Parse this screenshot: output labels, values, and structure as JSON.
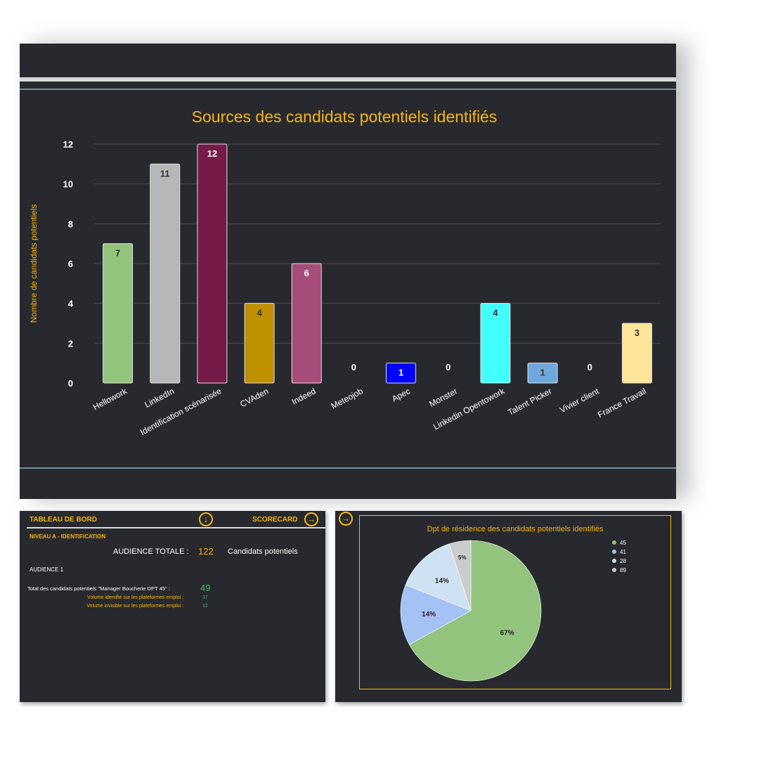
{
  "chart_data": [
    {
      "type": "bar",
      "title": "Sources des candidats potentiels identifiés",
      "ylabel": "Nombre de candidats potentiels",
      "xlabel": "",
      "ylim": [
        0,
        12
      ],
      "yticks": [
        0,
        2,
        4,
        6,
        8,
        10,
        12
      ],
      "grid": true,
      "categories": [
        "Hellowork",
        "LinkedIn",
        "Identification scénarisée",
        "CVAden",
        "Indeed",
        "Meteojob",
        "Apec",
        "Monster",
        "Linkedin Opentowork",
        "Talent Picker",
        "Vivier client",
        "France Travail"
      ],
      "values": [
        7,
        11,
        12,
        4,
        6,
        0,
        1,
        0,
        4,
        1,
        0,
        3
      ],
      "colors": [
        "#93c47d",
        "#b7b7b7",
        "#741b47",
        "#bf9000",
        "#a64d79",
        "#999999",
        "#0000ff",
        "#999999",
        "#42ffff",
        "#6fa8dc",
        "#999999",
        "#ffe599"
      ],
      "label_colors": [
        "#333333",
        "#333333",
        "#ffffff",
        "#333333",
        "#ffffff",
        "#ffffff",
        "#ffffff",
        "#ffffff",
        "#333333",
        "#333333",
        "#ffffff",
        "#333333"
      ]
    },
    {
      "type": "pie",
      "title": "Dpt de résidence des candidats potentiels identifiés",
      "legend": "top-right",
      "slices": [
        {
          "label": "45",
          "value": 67,
          "display": "67%",
          "color": "#93c47d"
        },
        {
          "label": "41",
          "value": 14,
          "display": "14%",
          "color": "#a4c2f4"
        },
        {
          "label": "28",
          "value": 14,
          "display": "14%",
          "color": "#cfe2f3"
        },
        {
          "label": "89",
          "value": 5,
          "display": "5%",
          "color": "#cccccc"
        }
      ]
    }
  ],
  "dashboard": {
    "header_left": "TABLEAU DE BORD",
    "header_right": "SCORECARD",
    "arrow_down_icon": "arrow-down-circle-icon",
    "arrow_right_icon": "arrow-right-circle-icon",
    "level": "NIVEAU A - IDENTIFICATION",
    "audience_total_label": "AUDIENCE TOTALE :",
    "audience_total_value": "122",
    "audience_total_unit": "Candidats potentiels",
    "audience_1": "AUDIENCE 1",
    "total_label": "Total des candidats potentiels \"Manager Boucherie DPT 45\" :",
    "total_value": "49",
    "identified_label": "Volume identifié sur les plateformes emploi :",
    "identified_value": "37",
    "invisible_label": "Volume invisible sur les plateformes emploi :",
    "invisible_value": "12"
  },
  "colors": {
    "panel_bg": "#27292e",
    "accent_yellow": "#f6b60f",
    "value_green": "#4bb85a"
  }
}
